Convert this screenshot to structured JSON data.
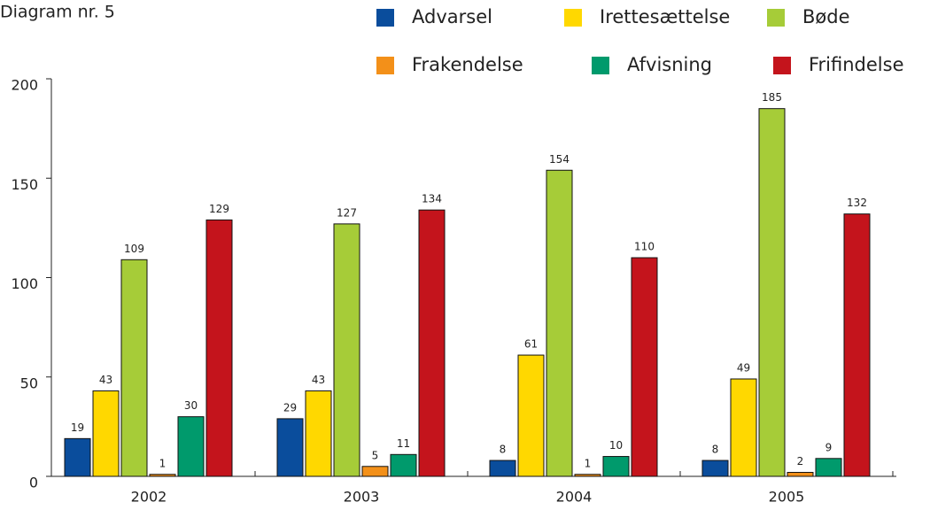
{
  "chart_data": {
    "type": "bar",
    "title": "Diagram nr. 5",
    "categories": [
      "2002",
      "2003",
      "2004",
      "2005"
    ],
    "series": [
      {
        "name": "Advarsel",
        "color": "#0a4d9c",
        "values": [
          19,
          29,
          8,
          8
        ]
      },
      {
        "name": "Irettesættelse",
        "color": "#ffd800",
        "values": [
          43,
          43,
          61,
          49
        ]
      },
      {
        "name": "Bøde",
        "color": "#a6cc38",
        "values": [
          109,
          127,
          154,
          185
        ]
      },
      {
        "name": "Frakendelse",
        "color": "#f39019",
        "values": [
          1,
          5,
          1,
          2
        ]
      },
      {
        "name": "Afvisning",
        "color": "#009a6c",
        "values": [
          30,
          11,
          10,
          9
        ]
      },
      {
        "name": "Frifindelse",
        "color": "#c4141c",
        "values": [
          129,
          134,
          110,
          132
        ]
      }
    ],
    "ylim": [
      0,
      200
    ],
    "yticks": [
      0,
      50,
      100,
      150,
      200
    ]
  }
}
